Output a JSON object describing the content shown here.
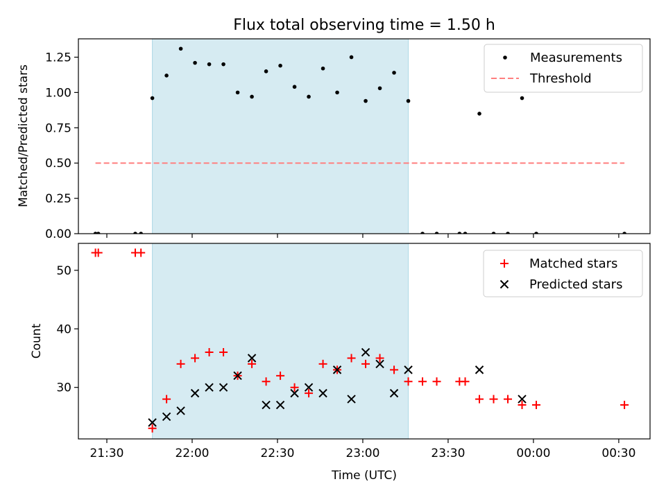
{
  "chart_data": [
    {
      "type": "scatter",
      "title": "Flux total observing time = 1.50 h",
      "ylabel": "Matched/Predicted stars",
      "xlim": [
        "21:20",
        "00:41"
      ],
      "ylim": [
        0,
        1.38
      ],
      "x_ticks": [
        "21:30",
        "22:00",
        "22:30",
        "23:00",
        "23:30",
        "00:00",
        "00:30"
      ],
      "y_ticks": [
        "0.00",
        "0.25",
        "0.50",
        "0.75",
        "1.00",
        "1.25"
      ],
      "highlight_span": {
        "start": "21:46",
        "end": "23:16",
        "color": "#add8e6"
      },
      "legend": {
        "position": "top-right",
        "entries": [
          "Measurements",
          "Threshold"
        ]
      },
      "series": [
        {
          "name": "Measurements",
          "marker": "dot",
          "color": "#000000",
          "points": [
            [
              "21:26",
              0.0
            ],
            [
              "21:27",
              0.0
            ],
            [
              "21:40",
              0.0
            ],
            [
              "21:42",
              0.0
            ],
            [
              "21:46",
              0.96
            ],
            [
              "21:51",
              1.12
            ],
            [
              "21:56",
              1.31
            ],
            [
              "22:01",
              1.21
            ],
            [
              "22:06",
              1.2
            ],
            [
              "22:11",
              1.2
            ],
            [
              "22:16",
              1.0
            ],
            [
              "22:21",
              0.97
            ],
            [
              "22:26",
              1.15
            ],
            [
              "22:31",
              1.19
            ],
            [
              "22:36",
              1.04
            ],
            [
              "22:41",
              0.97
            ],
            [
              "22:46",
              1.17
            ],
            [
              "22:51",
              1.0
            ],
            [
              "22:56",
              1.25
            ],
            [
              "23:01",
              0.94
            ],
            [
              "23:06",
              1.03
            ],
            [
              "23:11",
              1.14
            ],
            [
              "23:16",
              0.94
            ],
            [
              "23:21",
              0.0
            ],
            [
              "23:26",
              0.0
            ],
            [
              "23:34",
              0.0
            ],
            [
              "23:36",
              0.0
            ],
            [
              "23:41",
              0.85
            ],
            [
              "23:46",
              0.0
            ],
            [
              "23:51",
              0.0
            ],
            [
              "23:56",
              0.96
            ],
            [
              "00:01",
              0.0
            ],
            [
              "00:32",
              0.0
            ]
          ]
        },
        {
          "name": "Threshold",
          "line": "dashed",
          "color": "#ff7f7f",
          "points": [
            [
              "21:26",
              0.5
            ],
            [
              "00:32",
              0.5
            ]
          ]
        }
      ]
    },
    {
      "type": "scatter",
      "xlabel": "Time (UTC)",
      "ylabel": "Count",
      "xlim": [
        "21:20",
        "00:41"
      ],
      "ylim": [
        21.2,
        54.6
      ],
      "x_ticks": [
        "21:30",
        "22:00",
        "22:30",
        "23:00",
        "23:30",
        "00:00",
        "00:30"
      ],
      "y_ticks": [
        "30",
        "40",
        "50"
      ],
      "highlight_span": {
        "start": "21:46",
        "end": "23:16",
        "color": "#add8e6"
      },
      "legend": {
        "position": "top-right",
        "entries": [
          "Matched stars",
          "Predicted stars"
        ]
      },
      "series": [
        {
          "name": "Matched stars",
          "marker": "plus",
          "color": "#ff0000",
          "points": [
            [
              "21:26",
              53
            ],
            [
              "21:27",
              53
            ],
            [
              "21:40",
              53
            ],
            [
              "21:42",
              53
            ],
            [
              "21:46",
              23
            ],
            [
              "21:51",
              28
            ],
            [
              "21:56",
              34
            ],
            [
              "22:01",
              35
            ],
            [
              "22:06",
              36
            ],
            [
              "22:11",
              36
            ],
            [
              "22:16",
              32
            ],
            [
              "22:21",
              34
            ],
            [
              "22:26",
              31
            ],
            [
              "22:31",
              32
            ],
            [
              "22:36",
              30
            ],
            [
              "22:41",
              29
            ],
            [
              "22:46",
              34
            ],
            [
              "22:51",
              33
            ],
            [
              "22:56",
              35
            ],
            [
              "23:01",
              34
            ],
            [
              "23:06",
              35
            ],
            [
              "23:11",
              33
            ],
            [
              "23:16",
              31
            ],
            [
              "23:21",
              31
            ],
            [
              "23:26",
              31
            ],
            [
              "23:34",
              31
            ],
            [
              "23:36",
              31
            ],
            [
              "23:41",
              28
            ],
            [
              "23:46",
              28
            ],
            [
              "23:51",
              28
            ],
            [
              "23:56",
              27
            ],
            [
              "00:01",
              27
            ],
            [
              "00:32",
              27
            ]
          ]
        },
        {
          "name": "Predicted stars",
          "marker": "x",
          "color": "#000000",
          "points": [
            [
              "21:46",
              24
            ],
            [
              "21:51",
              25
            ],
            [
              "21:56",
              26
            ],
            [
              "22:01",
              29
            ],
            [
              "22:06",
              30
            ],
            [
              "22:11",
              30
            ],
            [
              "22:16",
              32
            ],
            [
              "22:21",
              35
            ],
            [
              "22:26",
              27
            ],
            [
              "22:31",
              27
            ],
            [
              "22:36",
              29
            ],
            [
              "22:41",
              30
            ],
            [
              "22:46",
              29
            ],
            [
              "22:51",
              33
            ],
            [
              "22:56",
              28
            ],
            [
              "23:01",
              36
            ],
            [
              "23:06",
              34
            ],
            [
              "23:11",
              29
            ],
            [
              "23:16",
              33
            ],
            [
              "23:41",
              33
            ],
            [
              "23:56",
              28
            ]
          ]
        }
      ]
    }
  ]
}
